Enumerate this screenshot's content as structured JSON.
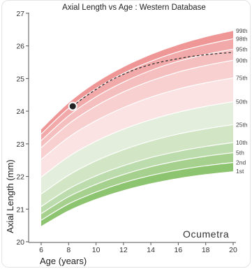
{
  "chart_data": {
    "type": "area",
    "title": "Axial Length vs Age : Western Database",
    "xlabel": "Age (years)",
    "ylabel": "Axial Length (mm)",
    "xlim": [
      6,
      20
    ],
    "ylim": [
      20,
      27
    ],
    "x_ticks": [
      6,
      8,
      10,
      12,
      14,
      16,
      18,
      20
    ],
    "y_ticks": [
      20,
      21,
      22,
      23,
      24,
      25,
      26,
      27
    ],
    "grid": false,
    "brand": "Ocumetra",
    "series": [
      {
        "name": "1st",
        "x": [
          6,
          8,
          10,
          12,
          14,
          16,
          18,
          20
        ],
        "values": [
          20.48,
          20.96,
          21.31,
          21.58,
          21.79,
          21.95,
          22.07,
          22.16
        ],
        "band_color": "#8dc46f"
      },
      {
        "name": "2nd",
        "x": [
          6,
          8,
          10,
          12,
          14,
          16,
          18,
          20
        ],
        "values": [
          20.66,
          21.16,
          21.52,
          21.81,
          22.03,
          22.2,
          22.33,
          22.43
        ],
        "band_color": "#a6d08e"
      },
      {
        "name": "5th",
        "x": [
          6,
          8,
          10,
          12,
          14,
          16,
          18,
          20
        ],
        "values": [
          20.86,
          21.38,
          21.76,
          22.06,
          22.3,
          22.48,
          22.62,
          22.73
        ],
        "band_color": "#bddcad"
      },
      {
        "name": "10th",
        "x": [
          6,
          8,
          10,
          12,
          14,
          16,
          18,
          20
        ],
        "values": [
          21.08,
          21.62,
          22.02,
          22.33,
          22.58,
          22.77,
          22.92,
          23.04
        ],
        "band_color": "#d2e6c6"
      },
      {
        "name": "25th",
        "x": [
          6,
          8,
          10,
          12,
          14,
          16,
          18,
          20
        ],
        "values": [
          21.46,
          22.04,
          22.48,
          22.82,
          23.09,
          23.3,
          23.46,
          23.59
        ],
        "band_color": "#e3eedc"
      },
      {
        "name": "50th",
        "x": [
          6,
          8,
          10,
          12,
          14,
          16,
          18,
          20
        ],
        "values": [
          21.98,
          22.61,
          23.08,
          23.45,
          23.74,
          23.97,
          24.15,
          24.29
        ],
        "band_color": "#fbe3e3"
      },
      {
        "name": "75th",
        "x": [
          6,
          8,
          10,
          12,
          14,
          16,
          18,
          20
        ],
        "values": [
          22.52,
          23.2,
          23.71,
          24.11,
          24.43,
          24.68,
          24.87,
          25.02
        ],
        "band_color": "#f8d0d0"
      },
      {
        "name": "90th",
        "x": [
          6,
          8,
          10,
          12,
          14,
          16,
          18,
          20
        ],
        "values": [
          22.88,
          23.61,
          24.16,
          24.59,
          24.93,
          25.2,
          25.4,
          25.56
        ],
        "band_color": "#f6bfbf"
      },
      {
        "name": "95th",
        "x": [
          6,
          8,
          10,
          12,
          14,
          16,
          18,
          20
        ],
        "values": [
          23.1,
          23.86,
          24.44,
          24.89,
          25.25,
          25.53,
          25.74,
          25.9
        ],
        "band_color": "#f2a9a9"
      },
      {
        "name": "98th",
        "x": [
          6,
          8,
          10,
          12,
          14,
          16,
          18,
          20
        ],
        "values": [
          23.3,
          24.09,
          24.69,
          25.16,
          25.53,
          25.82,
          26.04,
          26.22
        ],
        "band_color": "#ef9797"
      },
      {
        "name": "99th",
        "x": [
          6,
          8,
          10,
          12,
          14,
          16,
          18,
          20
        ],
        "values": [
          23.44,
          24.25,
          24.87,
          25.35,
          25.73,
          26.03,
          26.27,
          26.46
        ],
        "band_color": null
      }
    ],
    "patient": {
      "measurement": {
        "age": 8.3,
        "axial_length": 24.15
      },
      "projection": {
        "x": [
          8.3,
          9,
          10,
          11,
          12,
          13,
          14,
          15,
          16,
          17,
          18,
          19,
          20
        ],
        "values": [
          24.15,
          24.38,
          24.67,
          24.93,
          25.13,
          25.3,
          25.43,
          25.53,
          25.61,
          25.68,
          25.73,
          25.77,
          25.8
        ]
      },
      "projection_color": "#333333",
      "marker_fill": "#222222",
      "marker_stroke": "#ffffff"
    }
  }
}
